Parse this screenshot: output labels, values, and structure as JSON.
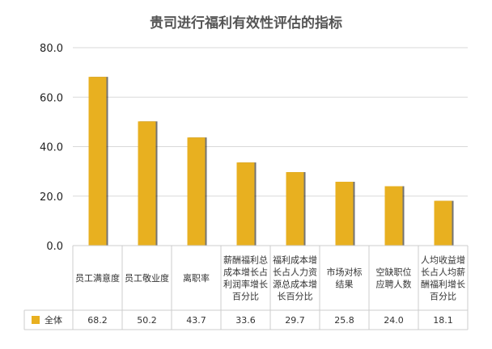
{
  "chart_data": {
    "type": "bar",
    "title": "贵司进行福利有效性评估的指标",
    "categories": [
      [
        "员工满意度"
      ],
      [
        "员工敬业度"
      ],
      [
        "离职率"
      ],
      [
        "薪酬福利总",
        "成本增长占",
        "利润率增长",
        "百分比"
      ],
      [
        "福利成本增",
        "长占人力资",
        "源总成本增",
        "长百分比"
      ],
      [
        "市场对标",
        "结果"
      ],
      [
        "空缺职位",
        "应聘人数"
      ],
      [
        "人均收益增",
        "长占人均薪",
        "酬福利增长",
        "百分比"
      ]
    ],
    "series": [
      {
        "name": "全体",
        "values": [
          68.2,
          50.2,
          43.7,
          33.6,
          29.7,
          25.8,
          24.0,
          18.1
        ],
        "value_labels": [
          "68.2",
          "50.2",
          "43.7",
          "33.6",
          "29.7",
          "25.8",
          "24.0",
          "18.1"
        ],
        "color": "#E8B020"
      }
    ],
    "ylim": [
      0,
      80
    ],
    "yticks": [
      "0.0",
      "20.0",
      "40.0",
      "60.0",
      "80.0"
    ],
    "grid": true,
    "legend": "data-table-left"
  }
}
